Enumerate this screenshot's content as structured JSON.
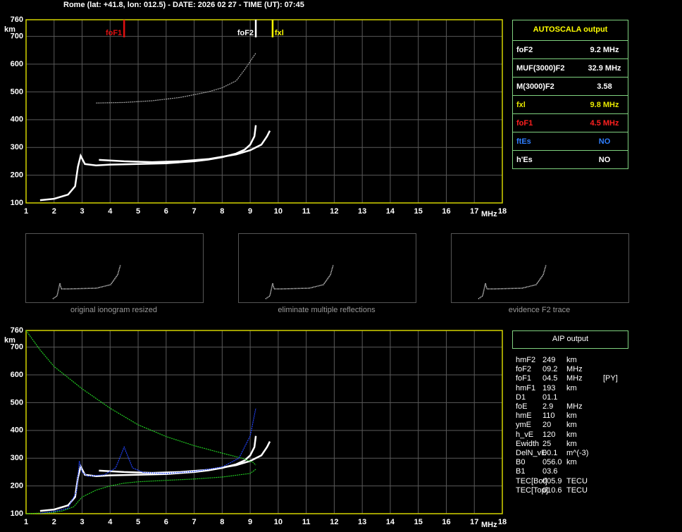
{
  "header": {
    "title": "Rome (lat: +41.8, lon: 012.5) - DATE: 2026 02 27 - TIME (UT): 07:45"
  },
  "chart_data": [
    {
      "type": "line",
      "x_label": "MHz",
      "y_label": "km",
      "xlim": [
        1,
        18
      ],
      "ylim": [
        100,
        760
      ],
      "xticks": [
        1,
        2,
        3,
        4,
        5,
        6,
        7,
        8,
        9,
        10,
        11,
        12,
        13,
        14,
        15,
        16,
        17,
        18
      ],
      "yticks": [
        100,
        200,
        300,
        400,
        500,
        600,
        700,
        760
      ],
      "grid": true,
      "frame_color": "#d4d400",
      "markers": [
        {
          "name": "foF1",
          "value": 4.5,
          "color": "#e01010"
        },
        {
          "name": "foF2",
          "value": 9.2,
          "color": "#ffffff"
        },
        {
          "name": "fxl",
          "value": 9.8,
          "color": "#ffff00"
        }
      ],
      "series": [
        {
          "color": "#ffffff",
          "x": [
            1.5,
            2.0,
            2.5,
            2.75,
            2.85,
            2.95,
            3.1,
            3.5,
            4.0,
            5.0,
            6.0,
            7.0,
            7.5,
            8.0,
            8.5,
            8.8,
            9.0,
            9.15,
            9.2
          ],
          "values": [
            110,
            115,
            130,
            160,
            230,
            270,
            240,
            235,
            238,
            240,
            243,
            250,
            256,
            265,
            278,
            292,
            310,
            340,
            380
          ]
        },
        {
          "color": "#ffffff",
          "x": [
            3.6,
            4.5,
            5.5,
            6.5,
            7.5,
            8.5,
            9.0,
            9.4,
            9.6,
            9.7
          ],
          "values": [
            255,
            250,
            247,
            250,
            258,
            275,
            290,
            310,
            340,
            360
          ]
        },
        {
          "color": "#aaaaaa",
          "x": [
            3.5,
            4.5,
            5.5,
            6.5,
            7.5,
            8.0,
            8.5,
            8.8,
            9.2
          ],
          "values": [
            460,
            462,
            468,
            480,
            500,
            515,
            540,
            580,
            640
          ]
        }
      ]
    },
    {
      "type": "line",
      "x_label": "MHz",
      "y_label": "km",
      "xlim": [
        1,
        18
      ],
      "ylim": [
        100,
        760
      ],
      "xticks": [
        1,
        2,
        3,
        4,
        5,
        6,
        7,
        8,
        9,
        10,
        11,
        12,
        13,
        14,
        15,
        16,
        17,
        18
      ],
      "yticks": [
        100,
        200,
        300,
        400,
        500,
        600,
        700,
        760
      ],
      "grid": true,
      "frame_color": "#d4d400",
      "series": [
        {
          "color": "#ffffff",
          "x": [
            1.5,
            2.0,
            2.5,
            2.75,
            2.85,
            2.95,
            3.1,
            3.5,
            4.0,
            5.0,
            6.0,
            7.0,
            7.5,
            8.0,
            8.5,
            8.8,
            9.0,
            9.15,
            9.2
          ],
          "values": [
            110,
            115,
            130,
            160,
            230,
            270,
            240,
            235,
            238,
            240,
            243,
            250,
            256,
            265,
            278,
            292,
            310,
            340,
            380
          ]
        },
        {
          "color": "#ffffff",
          "x": [
            3.6,
            4.5,
            5.5,
            6.5,
            7.5,
            8.5,
            9.0,
            9.4,
            9.6,
            9.7
          ],
          "values": [
            255,
            250,
            247,
            250,
            258,
            275,
            290,
            310,
            340,
            360
          ]
        },
        {
          "color": "#22cc22",
          "x": [
            1.0,
            1.5,
            2.0,
            3.0,
            4.0,
            5.0,
            6.0,
            7.0,
            8.0,
            8.7,
            9.1,
            9.2
          ],
          "values": [
            760,
            690,
            630,
            550,
            480,
            420,
            378,
            345,
            318,
            300,
            285,
            275
          ]
        },
        {
          "color": "#22cc22",
          "x": [
            9.2,
            9.0,
            8.0,
            7.0,
            6.0,
            5.0,
            4.5,
            4.0,
            3.5,
            3.0,
            2.7,
            2.3,
            2.0,
            1.5,
            1.0
          ],
          "values": [
            260,
            245,
            232,
            225,
            220,
            215,
            210,
            200,
            185,
            160,
            125,
            110,
            105,
            102,
            100
          ]
        },
        {
          "color": "#2244ff",
          "x": [
            1.5,
            2.0,
            2.5,
            2.8,
            2.9,
            3.0,
            3.2,
            3.8,
            4.2,
            4.5,
            4.8,
            5.2,
            6.0,
            7.0,
            8.0,
            8.6,
            9.0,
            9.2
          ],
          "values": [
            102,
            108,
            120,
            180,
            290,
            250,
            235,
            240,
            265,
            340,
            265,
            248,
            245,
            252,
            268,
            300,
            380,
            480
          ]
        }
      ]
    }
  ],
  "autoscala": {
    "title": "AUTOSCALA output",
    "rows": [
      {
        "label": "foF2",
        "value": "9.2 MHz",
        "color": "#ffffff"
      },
      {
        "label": "MUF(3000)F2",
        "value": "32.9 MHz",
        "color": "#ffffff"
      },
      {
        "label": "M(3000)F2",
        "value": "3.58",
        "color": "#ffffff"
      },
      {
        "label": "fxl",
        "value": "9.8 MHz",
        "color": "#e8e800"
      },
      {
        "label": "foF1",
        "value": "4.5 MHz",
        "color": "#ff2020"
      },
      {
        "label": "ftEs",
        "value": "NO",
        "color": "#2f7fff"
      },
      {
        "label": "h'Es",
        "value": "NO",
        "color": "#ffffff"
      }
    ]
  },
  "thumbnails": [
    "original ionogram resized",
    "eliminate multiple reflections",
    "evidence F2 trace"
  ],
  "aip": {
    "title": "AIP output",
    "rows": [
      [
        "hmF2",
        "249",
        "km"
      ],
      [
        "foF2",
        "09.2",
        "MHz"
      ],
      [
        "foF1",
        "04.5",
        "MHz",
        "[PY]"
      ],
      [
        "hmF1",
        "193",
        "km"
      ],
      [
        "D1",
        "01.1"
      ],
      [
        "foE",
        "2.9",
        "MHz"
      ],
      [
        "hmE",
        "110",
        "km"
      ],
      [
        "ymE",
        "20",
        "km"
      ],
      [
        "h_vE",
        "120",
        "km"
      ],
      [
        "Ewidth",
        "25",
        "km"
      ],
      [
        "DelN_vE",
        "00.1",
        "m^(-3)"
      ],
      [
        "B0",
        "056.0",
        "km"
      ],
      [
        "B1",
        "03.6"
      ],
      [
        "TEC[Bot]",
        "005.9",
        "TECU"
      ],
      [
        "TEC[Top]",
        "010.6",
        "TECU"
      ]
    ]
  }
}
